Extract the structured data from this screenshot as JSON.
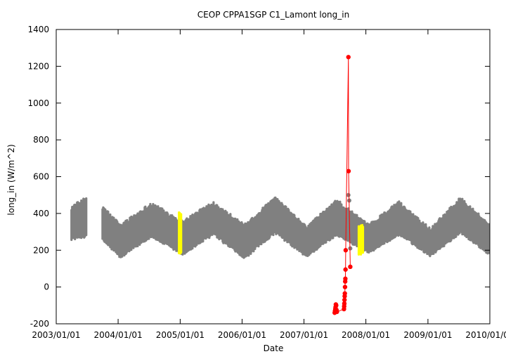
{
  "chart_data": {
    "type": "scatter",
    "title": "CEOP CPPA1SGP C1_Lamont  long_in",
    "xlabel": "Date",
    "ylabel": "long_in (W/m^2)",
    "xlim": [
      "2003/01/01",
      "2010/01/01"
    ],
    "ylim": [
      -200,
      1400
    ],
    "x_ticks": [
      "2003/01/01",
      "2004/01/01",
      "2005/01/01",
      "2006/01/01",
      "2007/01/01",
      "2008/01/01",
      "2009/01/01",
      "2010/01/01"
    ],
    "x_tick_labels": [
      "2003/01/01",
      "2004/01/01",
      "2005/01/01",
      "2006/01/01",
      "2007/01/01",
      "2008/01/01",
      "2009/01/01",
      "2010/01/01"
    ],
    "y_ticks": [
      -200,
      0,
      200,
      400,
      600,
      800,
      1000,
      1200,
      1400
    ],
    "grid": false,
    "series": [
      {
        "color": "#808080",
        "kind": "dense-band",
        "segments": [
          {
            "start": "2003/04/01",
            "end": "2003/07/01"
          },
          {
            "start": "2003/10/01",
            "end": "2010/01/01"
          }
        ],
        "envelope": [
          {
            "date": "2003/04/01",
            "low": 265,
            "high": 430
          },
          {
            "date": "2003/07/01",
            "low": 280,
            "high": 480
          },
          {
            "date": "2003/10/01",
            "low": 260,
            "high": 430
          },
          {
            "date": "2004/01/15",
            "low": 165,
            "high": 330
          },
          {
            "date": "2004/07/15",
            "low": 280,
            "high": 450
          },
          {
            "date": "2005/01/15",
            "low": 180,
            "high": 350
          },
          {
            "date": "2005/07/15",
            "low": 290,
            "high": 455
          },
          {
            "date": "2006/01/15",
            "low": 160,
            "high": 330
          },
          {
            "date": "2006/07/15",
            "low": 300,
            "high": 480
          },
          {
            "date": "2007/01/15",
            "low": 170,
            "high": 320
          },
          {
            "date": "2007/07/15",
            "low": 290,
            "high": 465
          },
          {
            "date": "2008/01/15",
            "low": 190,
            "high": 330
          },
          {
            "date": "2008/07/15",
            "low": 290,
            "high": 455
          },
          {
            "date": "2009/01/15",
            "low": 175,
            "high": 310
          },
          {
            "date": "2009/07/15",
            "low": 300,
            "high": 480
          },
          {
            "date": "2010/01/01",
            "low": 180,
            "high": 330
          }
        ],
        "outliers": [
          {
            "date": "2007/06/15",
            "value": 300
          },
          {
            "date": "2007/09/20",
            "value": 500
          },
          {
            "date": "2007/09/25",
            "value": 470
          },
          {
            "date": "2007/10/01",
            "value": 210
          }
        ]
      },
      {
        "color": "#ffff00",
        "kind": "dense-band",
        "segments": [
          {
            "start": "2004/12/25",
            "end": "2005/01/10"
          },
          {
            "start": "2007/11/20",
            "end": "2007/12/15"
          }
        ],
        "envelope_by_segment": [
          {
            "low": 185,
            "high": 395
          },
          {
            "low": 185,
            "high": 330
          }
        ]
      },
      {
        "color": "#ff0000",
        "kind": "points-with-lines",
        "points": [
          {
            "date": "2007/07/01",
            "value": -140
          },
          {
            "date": "2007/07/03",
            "value": -130
          },
          {
            "date": "2007/07/05",
            "value": -120
          },
          {
            "date": "2007/07/06",
            "value": -110
          },
          {
            "date": "2007/07/08",
            "value": -95
          },
          {
            "date": "2007/07/10",
            "value": -100
          },
          {
            "date": "2007/07/12",
            "value": -125
          },
          {
            "date": "2007/07/14",
            "value": -135
          },
          {
            "date": "2007/08/25",
            "value": -120
          },
          {
            "date": "2007/08/26",
            "value": -105
          },
          {
            "date": "2007/08/27",
            "value": -90
          },
          {
            "date": "2007/08/28",
            "value": -70
          },
          {
            "date": "2007/08/29",
            "value": -50
          },
          {
            "date": "2007/08/30",
            "value": -35
          },
          {
            "date": "2007/08/31",
            "value": 0
          },
          {
            "date": "2007/09/01",
            "value": 30
          },
          {
            "date": "2007/09/02",
            "value": 45
          },
          {
            "date": "2007/09/03",
            "value": 95
          },
          {
            "date": "2007/09/04",
            "value": 200
          },
          {
            "date": "2007/09/20",
            "value": 1250
          },
          {
            "date": "2007/09/21",
            "value": 630
          },
          {
            "date": "2007/10/01",
            "value": 110
          }
        ]
      }
    ]
  }
}
